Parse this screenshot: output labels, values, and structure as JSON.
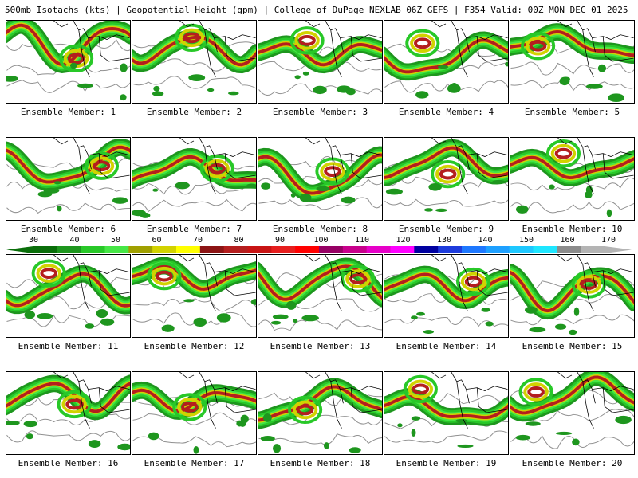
{
  "header": {
    "title": "500mb Isotachs (kts) | Geopotential Height (gpm) | College of DuPage NEXLAB   06Z GEFS | F354 Valid: 00Z MON DEC 01 2025"
  },
  "members": [
    {
      "caption": "Ensemble Member: 1"
    },
    {
      "caption": "Ensemble Member: 2"
    },
    {
      "caption": "Ensemble Member: 3"
    },
    {
      "caption": "Ensemble Member: 4"
    },
    {
      "caption": "Ensemble Member: 5"
    },
    {
      "caption": "Ensemble Member: 6"
    },
    {
      "caption": "Ensemble Member: 7"
    },
    {
      "caption": "Ensemble Member: 8"
    },
    {
      "caption": "Ensemble Member: 9"
    },
    {
      "caption": "Ensemble Member: 10"
    },
    {
      "caption": "Ensemble Member: 11"
    },
    {
      "caption": "Ensemble Member: 12"
    },
    {
      "caption": "Ensemble Member: 13"
    },
    {
      "caption": "Ensemble Member: 14"
    },
    {
      "caption": "Ensemble Member: 15"
    },
    {
      "caption": "Ensemble Member: 16"
    },
    {
      "caption": "Ensemble Member: 17"
    },
    {
      "caption": "Ensemble Member: 18"
    },
    {
      "caption": "Ensemble Member: 19"
    },
    {
      "caption": "Ensemble Member: 20"
    }
  ],
  "legend": {
    "labels": [
      "30",
      "40",
      "50",
      "60",
      "70",
      "80",
      "90",
      "100",
      "110",
      "120",
      "130",
      "140",
      "150",
      "160",
      "170"
    ],
    "colors": [
      "#0a6e0a",
      "#1e961e",
      "#28c828",
      "#46e646",
      "#a0a000",
      "#d2d200",
      "#ffff00",
      "#8c1414",
      "#b41e1e",
      "#c81414",
      "#e61e1e",
      "#ff0000",
      "#960064",
      "#c8008c",
      "#e600c8",
      "#ff00ff",
      "#0000a0",
      "#1e3cdc",
      "#1e78ff",
      "#1ea0ff",
      "#1ec8ff",
      "#1ee6ff",
      "#8c8c8c",
      "#b4b4b4"
    ],
    "contour_color": "#909090",
    "map_line_color": "#000000"
  }
}
